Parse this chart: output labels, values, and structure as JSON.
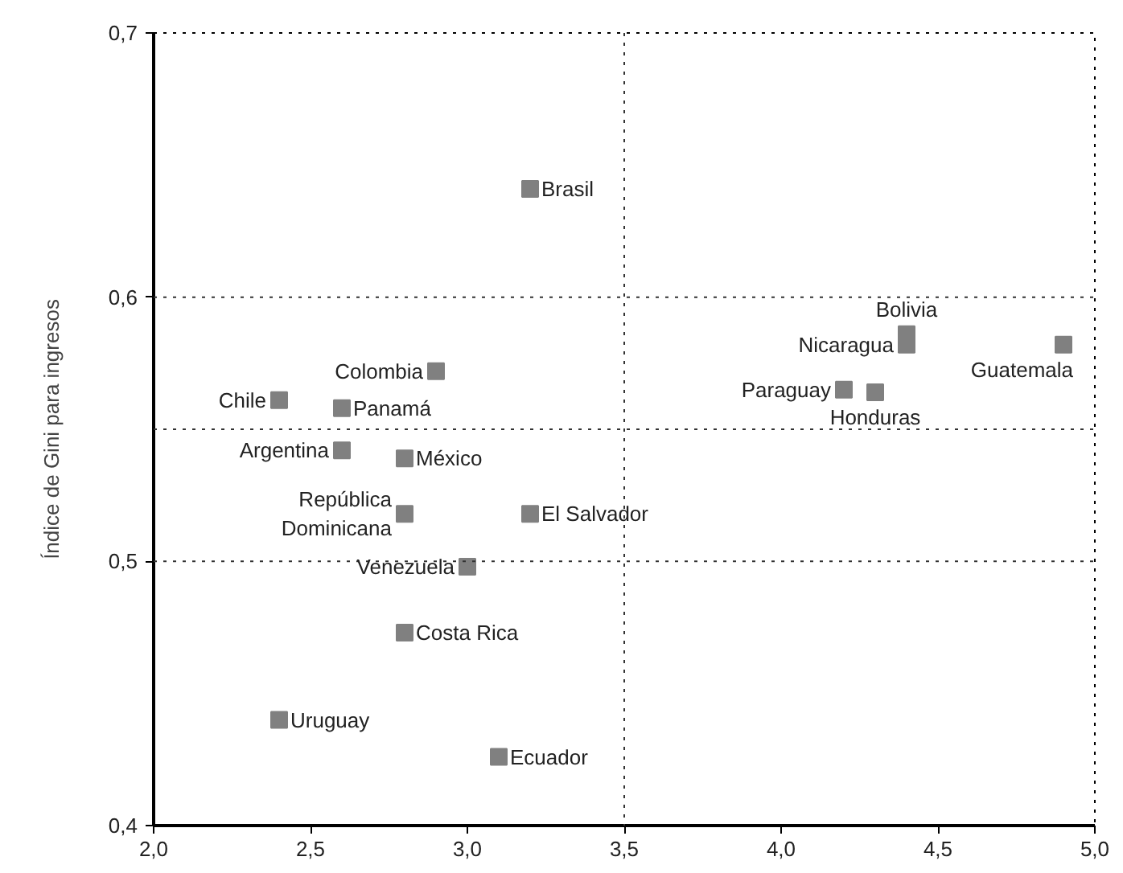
{
  "chart_data": {
    "type": "scatter",
    "ylabel": "Índice de Gini para ingresos",
    "marker": "square",
    "grid": false,
    "xlim": [
      2.0,
      5.0
    ],
    "xticks": [
      {
        "value": 2.0,
        "label": "2,0"
      },
      {
        "value": 2.5,
        "label": "2,5"
      },
      {
        "value": 3.0,
        "label": "3,0"
      },
      {
        "value": 3.5,
        "label": "3,5"
      },
      {
        "value": 4.0,
        "label": "4,0"
      },
      {
        "value": 4.5,
        "label": "4,5"
      },
      {
        "value": 5.0,
        "label": "5,0"
      }
    ],
    "ylim": [
      0.4,
      0.7
    ],
    "yticks": [
      {
        "value": 0.4,
        "label": "0,4"
      },
      {
        "value": 0.5,
        "label": "0,5"
      },
      {
        "value": 0.6,
        "label": "0,6"
      },
      {
        "value": 0.7,
        "label": "0,7"
      }
    ],
    "ref_lines": [
      {
        "axis": "y",
        "value": 0.6,
        "line_style": "dotted"
      },
      {
        "axis": "y",
        "value": 0.55,
        "line_style": "dotted"
      },
      {
        "axis": "y",
        "value": 0.5,
        "line_style": "dotted"
      },
      {
        "axis": "x",
        "value": 3.5,
        "line_style": "dotted"
      }
    ],
    "series": [
      {
        "name": "Brasil",
        "color": "#808080",
        "x": [
          3.2
        ],
        "values": [
          0.641
        ]
      },
      {
        "name": "Bolivia",
        "color": "#808080",
        "x": [
          4.4
        ],
        "values": [
          0.586
        ]
      },
      {
        "name": "Nicaragua",
        "color": "#808080",
        "x": [
          4.4
        ],
        "values": [
          0.582
        ]
      },
      {
        "name": "Guatemala",
        "color": "#808080",
        "x": [
          4.9
        ],
        "values": [
          0.582
        ]
      },
      {
        "name": "Paraguay",
        "color": "#808080",
        "x": [
          4.2
        ],
        "values": [
          0.565
        ]
      },
      {
        "name": "Honduras",
        "color": "#808080",
        "x": [
          4.3
        ],
        "values": [
          0.564
        ]
      },
      {
        "name": "Colombia",
        "color": "#808080",
        "x": [
          2.9
        ],
        "values": [
          0.572
        ]
      },
      {
        "name": "Chile",
        "color": "#808080",
        "x": [
          2.4
        ],
        "values": [
          0.561
        ]
      },
      {
        "name": "Panamá",
        "color": "#808080",
        "x": [
          2.6
        ],
        "values": [
          0.558
        ]
      },
      {
        "name": "Argentina",
        "color": "#808080",
        "x": [
          2.6
        ],
        "values": [
          0.542
        ]
      },
      {
        "name": "México",
        "color": "#808080",
        "x": [
          2.8
        ],
        "values": [
          0.539
        ]
      },
      {
        "name": "República\nDominicana",
        "color": "#808080",
        "x": [
          2.8
        ],
        "values": [
          0.518
        ]
      },
      {
        "name": "El Salvador",
        "color": "#808080",
        "x": [
          3.2
        ],
        "values": [
          0.518
        ]
      },
      {
        "name": "Venezuela",
        "color": "#808080",
        "x": [
          3.0
        ],
        "values": [
          0.498
        ]
      },
      {
        "name": "Costa Rica",
        "color": "#808080",
        "x": [
          2.8
        ],
        "values": [
          0.473
        ]
      },
      {
        "name": "Uruguay",
        "color": "#808080",
        "x": [
          2.4
        ],
        "values": [
          0.44
        ]
      },
      {
        "name": "Ecuador",
        "color": "#808080",
        "x": [
          3.1
        ],
        "values": [
          0.426
        ]
      }
    ]
  }
}
